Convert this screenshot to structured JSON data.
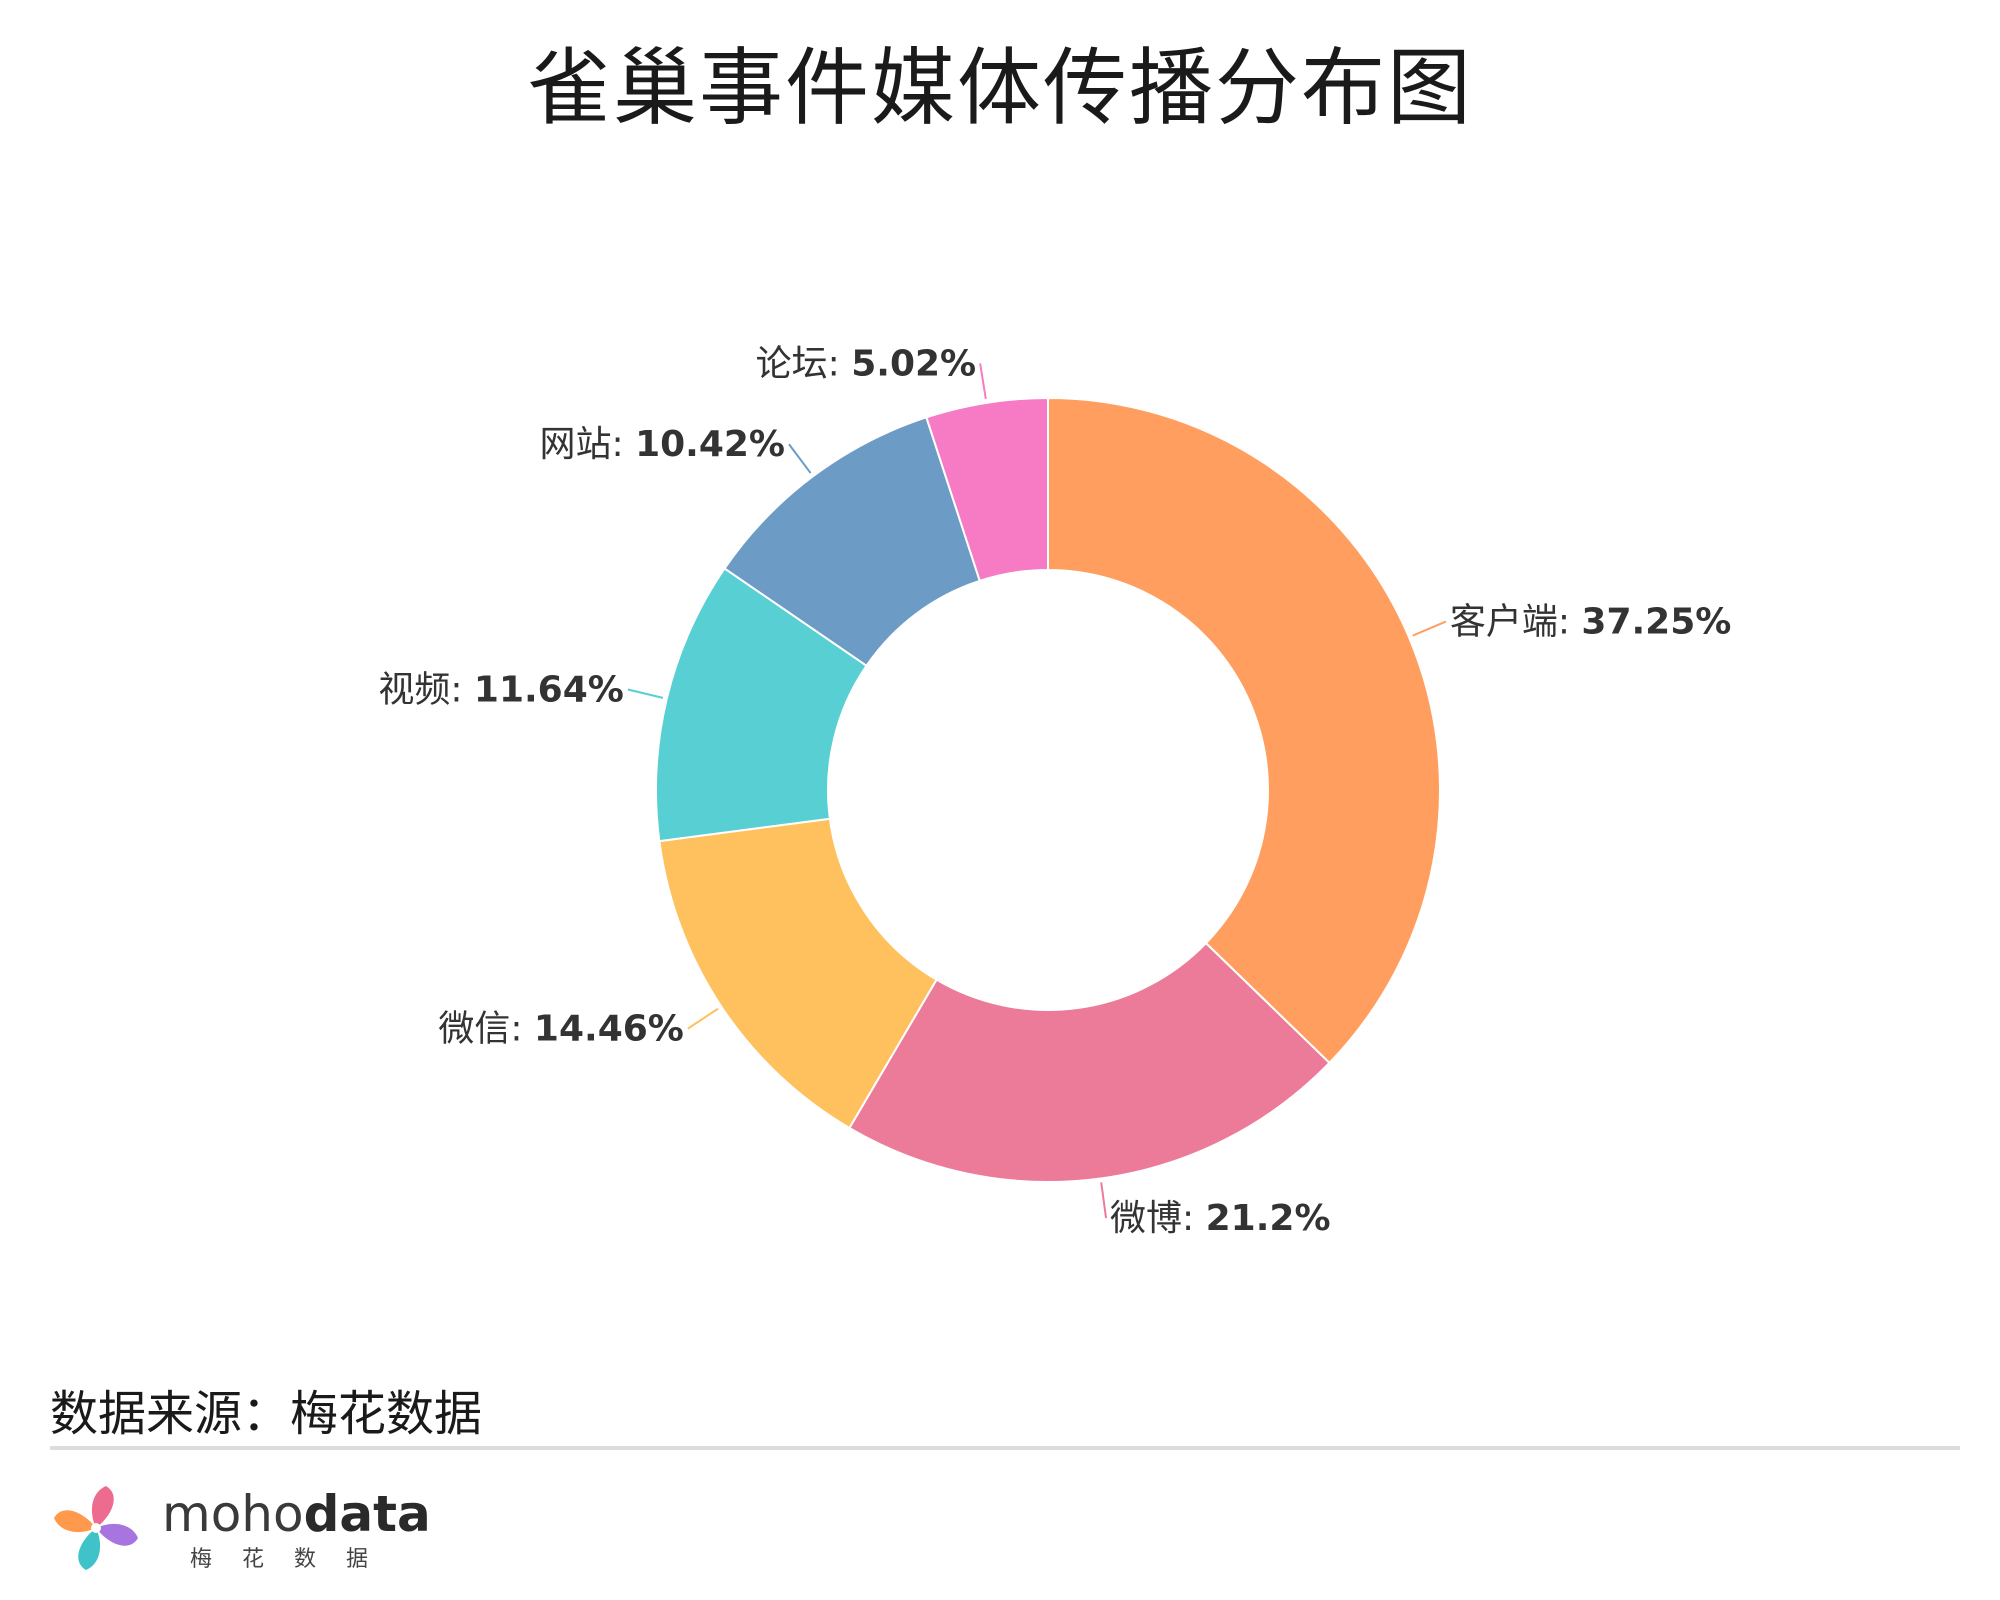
{
  "chart_data": {
    "type": "pie",
    "variant": "donut",
    "title": "雀巢事件媒体传播分布图",
    "categories": [
      "客户端",
      "微博",
      "微信",
      "视频",
      "网站",
      "论坛"
    ],
    "values": [
      37.25,
      21.2,
      14.46,
      11.64,
      10.42,
      5.02
    ],
    "labels": [
      "客户端: 37.25%",
      "微博: 21.2%",
      "微信: 14.46%",
      "视频: 11.64%",
      "网站: 10.42%",
      "论坛: 5.02%"
    ],
    "colors": [
      "#FF9E5E",
      "#EC7B9A",
      "#FFC05E",
      "#57CFD3",
      "#6C9BC6",
      "#F77AC4"
    ],
    "legend": "none"
  },
  "footer": {
    "source": "数据来源：梅花数据",
    "brand_light": "moho",
    "brand_bold": "data",
    "brand_sub": "梅花数据"
  }
}
